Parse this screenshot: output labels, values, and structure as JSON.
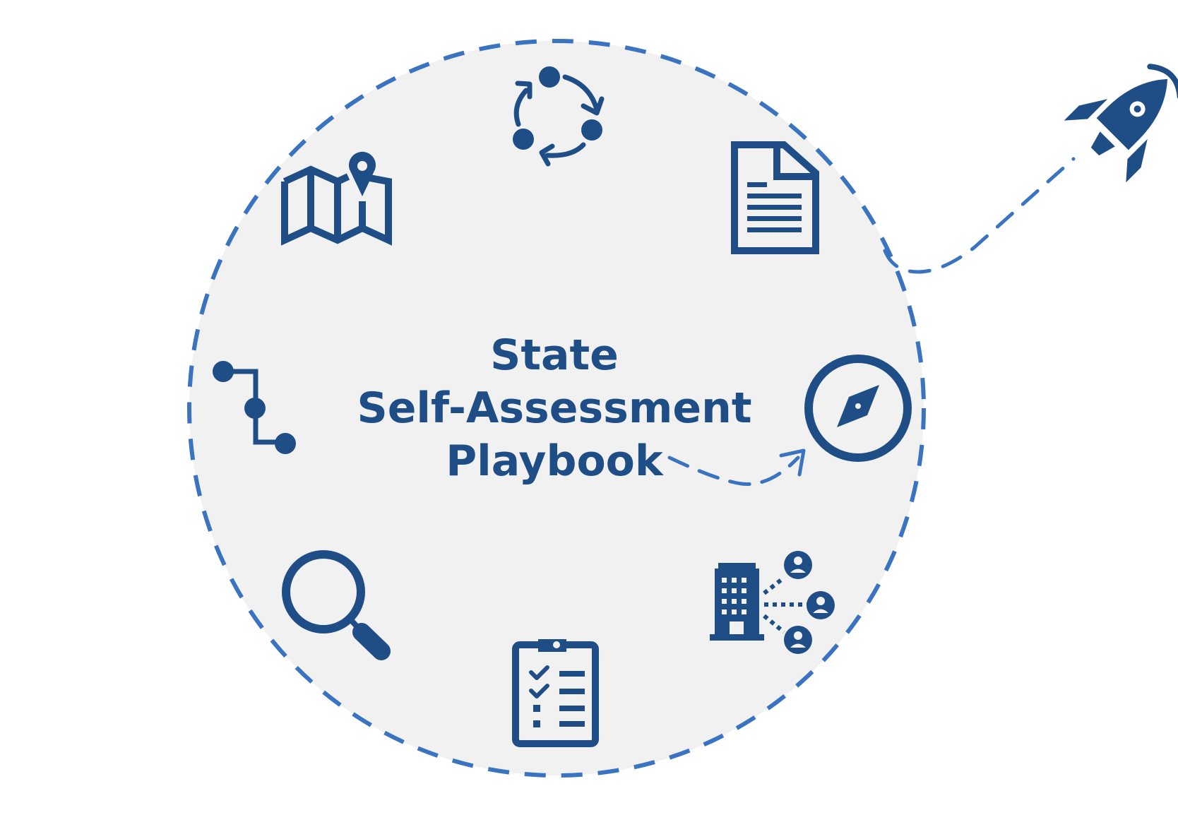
{
  "diagram": {
    "title_lines": [
      "State",
      "Self-Assessment",
      "Playbook"
    ],
    "colors": {
      "icon": "#1f4e86",
      "dash": "#3a74c0",
      "circle_fill": "#f1f1f2",
      "background": "#ffffff"
    },
    "icons": [
      "cycle-icon",
      "document-icon",
      "compass-icon",
      "building-network-icon",
      "clipboard-checklist-icon",
      "magnifier-icon",
      "path-nodes-icon",
      "map-pin-icon",
      "rocket-icon"
    ]
  }
}
